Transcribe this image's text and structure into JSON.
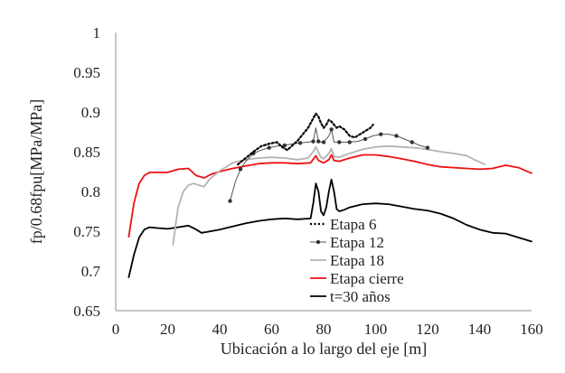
{
  "chart_data": {
    "type": "line",
    "title": "",
    "xlabel": "Ubicación a lo largo del eje [m]",
    "ylabel": "fp/0.68fpu[MPa/MPa]",
    "xlim": [
      0,
      160
    ],
    "ylim": [
      0.65,
      1.0
    ],
    "xticks": [
      0,
      20,
      40,
      60,
      80,
      100,
      120,
      140,
      160
    ],
    "yticks": [
      0.65,
      0.7,
      0.75,
      0.8,
      0.85,
      0.9,
      0.95,
      1.0
    ],
    "xtick_labels": [
      "0",
      "20",
      "40",
      "60",
      "80",
      "100",
      "120",
      "140",
      "160"
    ],
    "ytick_labels": [
      "0.65",
      "0.7",
      "0.75",
      "0.8",
      "0.85",
      "0.9",
      "0.95",
      "1"
    ],
    "grid": false,
    "legend_position": "bottom-center",
    "series": [
      {
        "name": "Etapa 6",
        "color": "#000000",
        "style": "dotted",
        "x": [
          47,
          50,
          53,
          56,
          59,
          62,
          64,
          66,
          68,
          70,
          72,
          74,
          76,
          77,
          78,
          79,
          80,
          81,
          82,
          83,
          84,
          85,
          86,
          88,
          90,
          92,
          94,
          96,
          98,
          99
        ],
        "y": [
          0.834,
          0.842,
          0.85,
          0.857,
          0.86,
          0.862,
          0.856,
          0.852,
          0.858,
          0.864,
          0.872,
          0.88,
          0.892,
          0.898,
          0.894,
          0.886,
          0.88,
          0.884,
          0.89,
          0.888,
          0.884,
          0.88,
          0.882,
          0.878,
          0.87,
          0.868,
          0.872,
          0.876,
          0.88,
          0.884
        ]
      },
      {
        "name": "Etapa 12",
        "color": "#555555",
        "style": "line-markers",
        "x": [
          44,
          46,
          48,
          50,
          53,
          56,
          59,
          62,
          65,
          68,
          71,
          74,
          76,
          77,
          78,
          79,
          80,
          82,
          83,
          84,
          86,
          88,
          90,
          93,
          96,
          99,
          102,
          105,
          108,
          111,
          114,
          117,
          120
        ],
        "y": [
          0.788,
          0.812,
          0.828,
          0.838,
          0.848,
          0.852,
          0.855,
          0.857,
          0.858,
          0.86,
          0.861,
          0.862,
          0.863,
          0.88,
          0.863,
          0.862,
          0.862,
          0.87,
          0.878,
          0.862,
          0.862,
          0.862,
          0.862,
          0.863,
          0.866,
          0.87,
          0.872,
          0.872,
          0.87,
          0.866,
          0.862,
          0.858,
          0.855
        ]
      },
      {
        "name": "Etapa 18",
        "color": "#b3b3b3",
        "style": "solid",
        "x": [
          22,
          24,
          26,
          28,
          30,
          32,
          34,
          36,
          40,
          45,
          50,
          55,
          60,
          65,
          70,
          74,
          76,
          77,
          78,
          79,
          80,
          82,
          83,
          84,
          86,
          90,
          95,
          100,
          105,
          110,
          115,
          120,
          125,
          130,
          135,
          138,
          142
        ],
        "y": [
          0.733,
          0.78,
          0.8,
          0.808,
          0.81,
          0.808,
          0.806,
          0.815,
          0.826,
          0.836,
          0.84,
          0.842,
          0.843,
          0.842,
          0.84,
          0.842,
          0.85,
          0.856,
          0.849,
          0.843,
          0.841,
          0.848,
          0.854,
          0.844,
          0.843,
          0.848,
          0.853,
          0.856,
          0.857,
          0.856,
          0.855,
          0.853,
          0.85,
          0.848,
          0.845,
          0.84,
          0.834
        ]
      },
      {
        "name": "Etapa cierre",
        "color": "#ee1111",
        "style": "solid",
        "x": [
          5,
          7,
          9,
          11,
          13,
          16,
          20,
          24,
          28,
          31,
          34,
          37,
          40,
          45,
          50,
          55,
          60,
          65,
          70,
          75,
          77,
          78,
          80,
          82,
          83,
          84,
          86,
          90,
          95,
          100,
          105,
          110,
          115,
          120,
          125,
          130,
          135,
          140,
          145,
          150,
          155,
          160
        ],
        "y": [
          0.743,
          0.785,
          0.81,
          0.82,
          0.824,
          0.824,
          0.824,
          0.828,
          0.829,
          0.82,
          0.817,
          0.822,
          0.825,
          0.829,
          0.832,
          0.835,
          0.836,
          0.836,
          0.835,
          0.836,
          0.845,
          0.839,
          0.836,
          0.84,
          0.846,
          0.839,
          0.838,
          0.842,
          0.846,
          0.846,
          0.844,
          0.841,
          0.838,
          0.834,
          0.831,
          0.83,
          0.829,
          0.828,
          0.829,
          0.833,
          0.83,
          0.823
        ]
      },
      {
        "name": "t=30 años",
        "color": "#000000",
        "style": "solid",
        "x": [
          5,
          7,
          9,
          11,
          13,
          16,
          20,
          24,
          28,
          31,
          33,
          35,
          40,
          45,
          50,
          55,
          60,
          65,
          70,
          75,
          76,
          77,
          78,
          79,
          80,
          81,
          82,
          83,
          84,
          85,
          86,
          88,
          90,
          95,
          100,
          105,
          110,
          115,
          120,
          125,
          130,
          135,
          140,
          145,
          150,
          155,
          160
        ],
        "y": [
          0.692,
          0.72,
          0.742,
          0.752,
          0.755,
          0.754,
          0.753,
          0.755,
          0.757,
          0.752,
          0.748,
          0.749,
          0.752,
          0.756,
          0.76,
          0.763,
          0.765,
          0.766,
          0.765,
          0.766,
          0.785,
          0.81,
          0.8,
          0.775,
          0.77,
          0.78,
          0.8,
          0.815,
          0.8,
          0.778,
          0.775,
          0.777,
          0.78,
          0.784,
          0.785,
          0.784,
          0.781,
          0.778,
          0.776,
          0.772,
          0.766,
          0.758,
          0.752,
          0.748,
          0.747,
          0.742,
          0.737
        ]
      }
    ],
    "legend": [
      {
        "label": "Etapa 6",
        "style": "dotted",
        "color": "#000000"
      },
      {
        "label": "Etapa 12",
        "style": "line-markers",
        "color": "#555555"
      },
      {
        "label": "Etapa 18",
        "style": "solid",
        "color": "#b3b3b3"
      },
      {
        "label": "Etapa cierre",
        "style": "solid",
        "color": "#ee1111"
      },
      {
        "label": "t=30 años",
        "style": "solid",
        "color": "#000000"
      }
    ]
  }
}
